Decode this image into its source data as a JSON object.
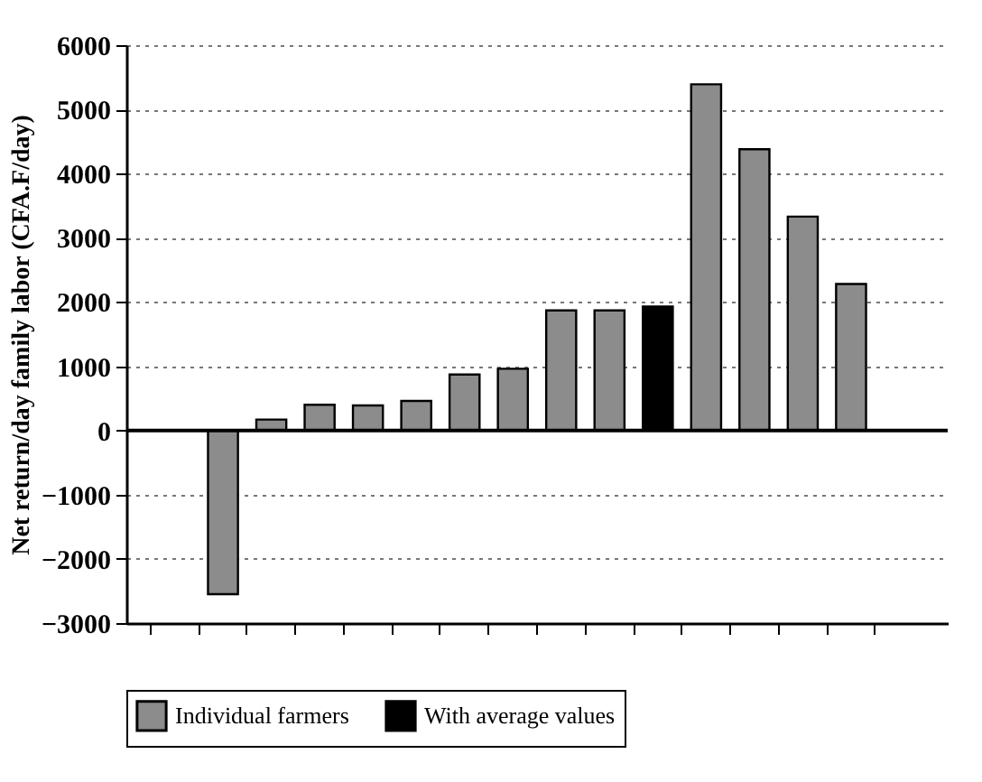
{
  "chart_data": {
    "type": "bar",
    "ylabel": "Net return/day family labor (CFA.F/day)",
    "categories": [
      null,
      null,
      null,
      null,
      null,
      null,
      null,
      null,
      null,
      null,
      null,
      null,
      null,
      null,
      null,
      null
    ],
    "series": [
      {
        "name": "Individual farmers",
        "color": "#8c8c8c",
        "values": [
          null,
          -2550,
          170,
          400,
          390,
          460,
          870,
          960,
          1870,
          1870,
          null,
          5390,
          4380,
          3330,
          2280,
          null
        ]
      },
      {
        "name": "With average values",
        "color": "#000000",
        "values": [
          null,
          null,
          null,
          null,
          null,
          null,
          null,
          null,
          null,
          null,
          1930,
          null,
          null,
          null,
          null,
          null
        ]
      }
    ],
    "ylim": [
      -3000,
      6000
    ],
    "yticks": [
      -3000,
      -2000,
      -1000,
      0,
      1000,
      2000,
      3000,
      4000,
      5000,
      6000
    ],
    "grid": "y",
    "legend": "bottom",
    "tick_labels": "y",
    "ref_lines": [
      {
        "axis": "y",
        "value": 0
      }
    ]
  }
}
